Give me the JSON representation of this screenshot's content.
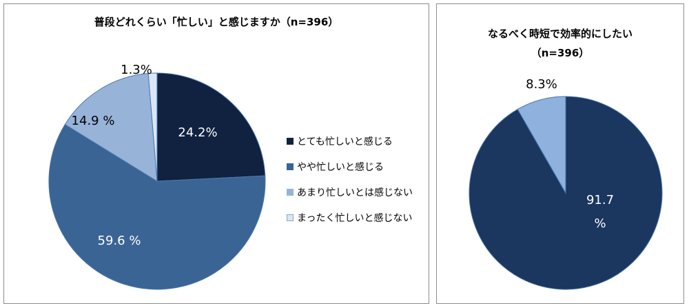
{
  "chart_data": [
    {
      "type": "pie",
      "title": "普段どれくらい「忙しい」と感じますか（n=396）",
      "categories": [
        "とても忙しいと感じる",
        "やや忙しいと感じる",
        "あまり忙しいとは感じない",
        "まったく忙しいと感じない"
      ],
      "values": [
        24.2,
        59.6,
        14.9,
        1.3
      ],
      "data_labels": [
        "24.2%",
        "59.6 %",
        "14.9 %",
        "1.3%"
      ],
      "colors": [
        "#10223f",
        "#3a6494",
        "#97b3d8",
        "#dbe6f4"
      ],
      "label_colors": [
        "#ffffff",
        "#ffffff",
        "#000000",
        "#000000"
      ],
      "start_angle_deg": 0,
      "direction": "clockwise",
      "legend": "right"
    },
    {
      "type": "pie",
      "title": "なるべく時短で効率的にしたい（n=396）",
      "title_lines": [
        "なるべく時短で効率的にしたい",
        "（n=396）"
      ],
      "values": [
        91.7,
        8.3
      ],
      "data_labels": [
        [
          "91.7",
          "%"
        ],
        [
          "8.3%"
        ]
      ],
      "colors": [
        "#1b365f",
        "#8eb1de"
      ],
      "label_colors": [
        "#ffffff",
        "#000000"
      ],
      "start_angle_deg": 0,
      "direction": "clockwise"
    }
  ]
}
